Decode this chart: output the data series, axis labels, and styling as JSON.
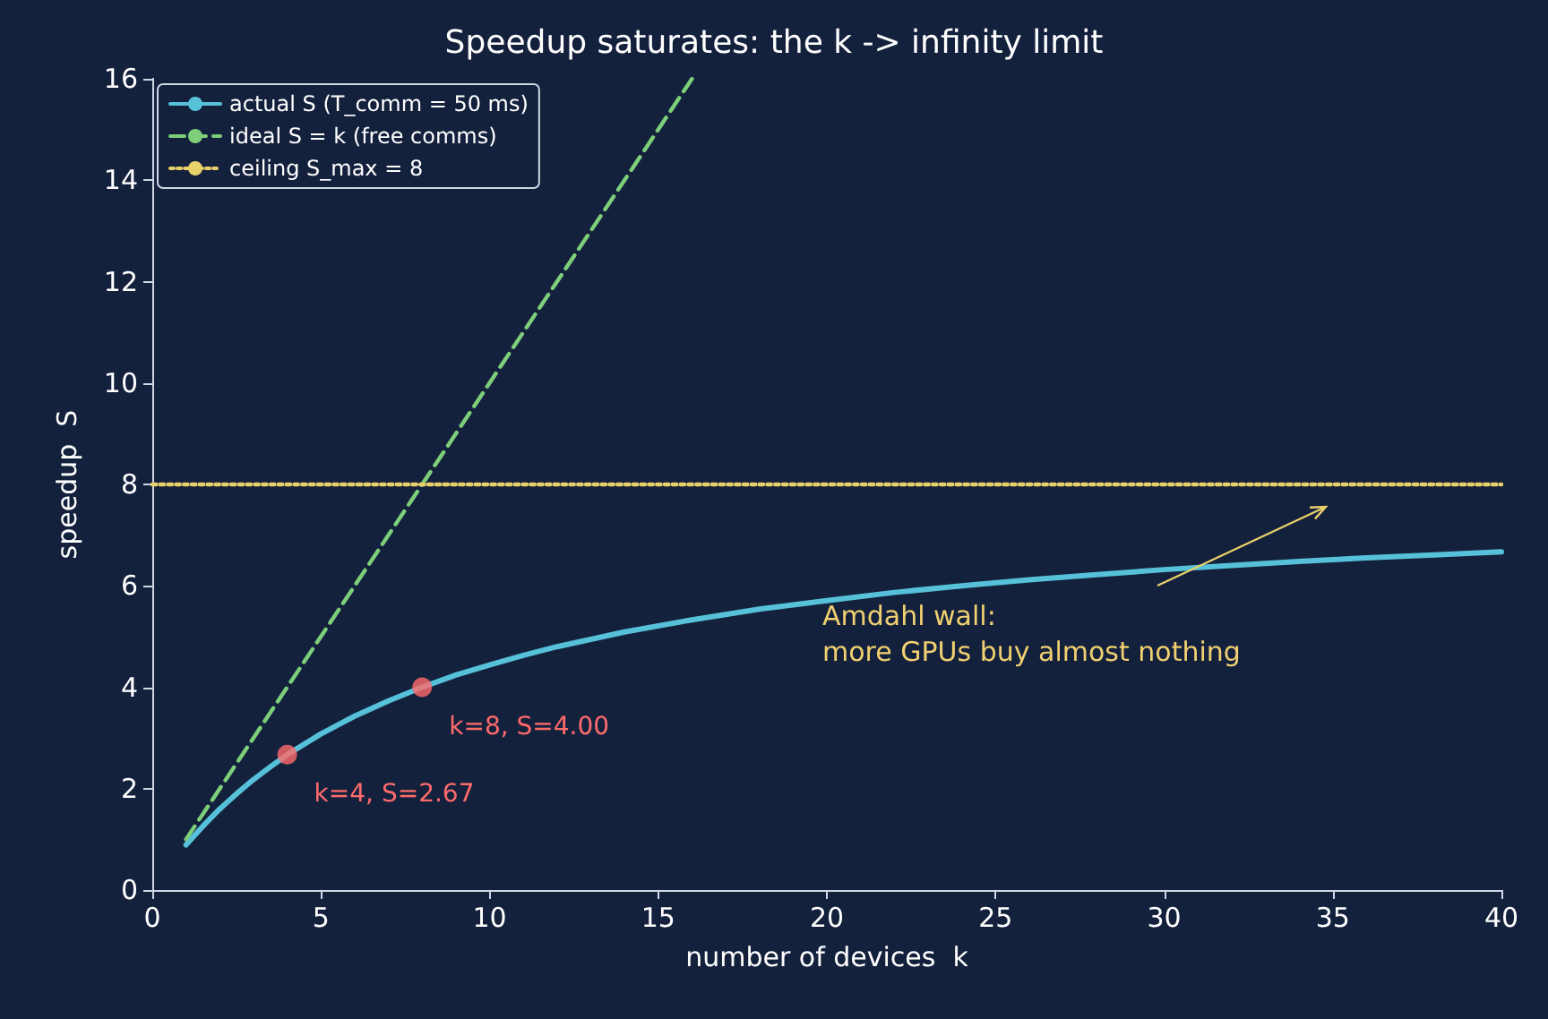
{
  "chart_data": {
    "type": "line",
    "title": "Speedup saturates: the k -> infinity limit",
    "xlabel": "number of devices  k",
    "ylabel": "speedup  S",
    "xlim": [
      0,
      40
    ],
    "xticks": [
      0,
      5,
      10,
      15,
      20,
      25,
      30,
      35,
      40
    ],
    "ylim": [
      0,
      16
    ],
    "yticks": [
      0,
      2,
      4,
      6,
      8,
      10,
      12,
      14,
      16
    ],
    "grid": false,
    "legend": "top left",
    "marker": "none",
    "series": [
      {
        "name": "actual S (T_comm = 50 ms)",
        "color": "#56c1d9",
        "line_style": "solid",
        "x": [
          1,
          1.5,
          2,
          2.5,
          3,
          3.5,
          4,
          5,
          6,
          7,
          8,
          9,
          10,
          11,
          12,
          14,
          16,
          18,
          20,
          22,
          24,
          26,
          28,
          30,
          32,
          34,
          36,
          38,
          40
        ],
        "values": [
          0.89,
          1.26,
          1.6,
          1.9,
          2.18,
          2.43,
          2.67,
          3.08,
          3.43,
          3.73,
          4,
          4.24,
          4.44,
          4.63,
          4.8,
          5.09,
          5.33,
          5.54,
          5.71,
          5.87,
          6,
          6.12,
          6.22,
          6.32,
          6.4,
          6.48,
          6.55,
          6.61,
          6.67
        ]
      },
      {
        "name": "ideal S = k (free comms)",
        "color": "#7dcf7a",
        "line_style": "dashed",
        "x": [
          1,
          16
        ],
        "values": [
          1,
          16
        ]
      },
      {
        "name": "ceiling S_max = 8",
        "color": "#e8d06a",
        "line_style": "dotted",
        "x": [
          0,
          40
        ],
        "values": [
          8,
          8
        ]
      },
      {
        "type": "scatter",
        "marker": "circle",
        "color": "#ff6b6b",
        "x": [
          4,
          8
        ],
        "values": [
          2.67,
          4
        ]
      }
    ],
    "annotations": [
      {
        "text": "k=4, S=2.67",
        "x": 4,
        "y": 2.67
      },
      {
        "text": "k=8, S=4.00",
        "x": 8,
        "y": 4
      },
      "Amdahl wall:\nmore GPUs buy almost nothing"
    ]
  }
}
